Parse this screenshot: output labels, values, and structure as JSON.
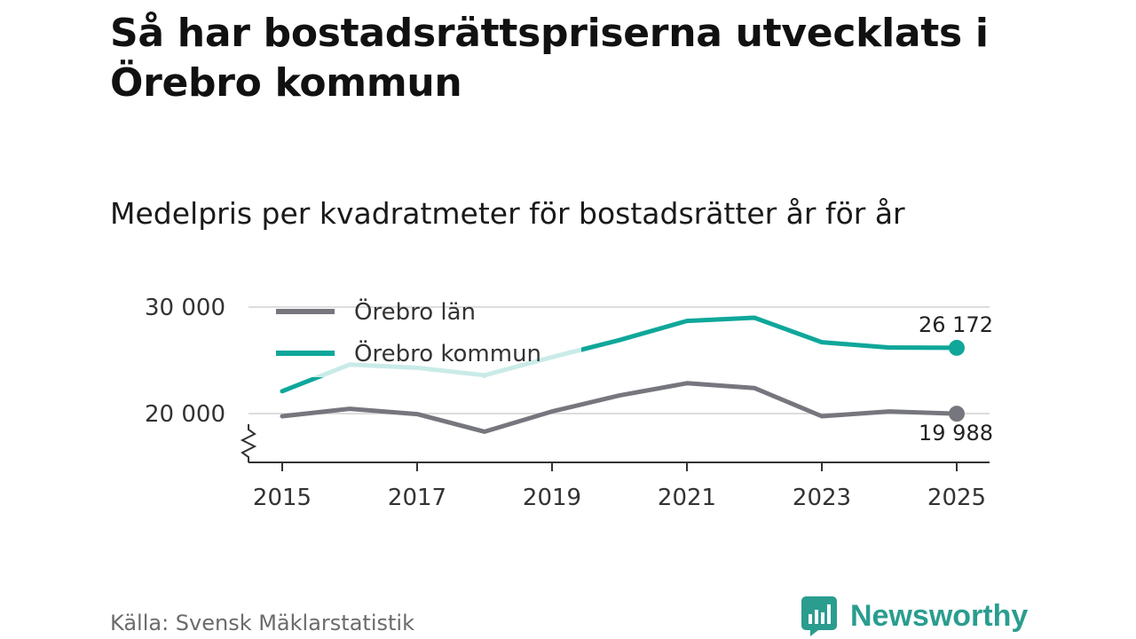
{
  "header": {
    "title": "Så har bostadsrättspriserna utvecklats i Örebro kommun",
    "subtitle": "Medelpris per kvadratmeter för bostadsrätter år för år"
  },
  "footer": {
    "source": "Källa: Svensk Mäklarstatistik",
    "logo_text": "Newsworthy"
  },
  "colors": {
    "lan": "#76767e",
    "kommun": "#0fa79a",
    "kommun_faded": "#c9ebe8",
    "grid": "#dddddd",
    "axis": "#333333"
  },
  "chart_data": {
    "type": "line",
    "title": "Medelpris per kvadratmeter för bostadsrätter år för år",
    "xlabel": "",
    "ylabel": "",
    "x": [
      2015,
      2016,
      2017,
      2018,
      2019,
      2020,
      2021,
      2022,
      2023,
      2024,
      2025
    ],
    "xticks": [
      2015,
      2017,
      2019,
      2021,
      2023,
      2025
    ],
    "xtick_labels": [
      "2015",
      "2017",
      "2019",
      "2021",
      "2023",
      "2025"
    ],
    "yticks": [
      20000,
      30000
    ],
    "ytick_labels": [
      "20 000",
      "30 000"
    ],
    "ylim": [
      15500,
      31500
    ],
    "grid": true,
    "axis_break": true,
    "legend_position": "top-left",
    "series": [
      {
        "name": "Örebro län",
        "color_key": "lan",
        "values": [
          19750,
          20450,
          19950,
          18300,
          20200,
          21700,
          22850,
          22400,
          19750,
          20200,
          19988
        ],
        "end_label": "19 988"
      },
      {
        "name": "Örebro kommun",
        "color_key": "kommun",
        "values": [
          22100,
          24600,
          24300,
          23600,
          25300,
          26900,
          28700,
          29000,
          26700,
          26200,
          26172
        ],
        "end_label": "26 172"
      }
    ]
  }
}
